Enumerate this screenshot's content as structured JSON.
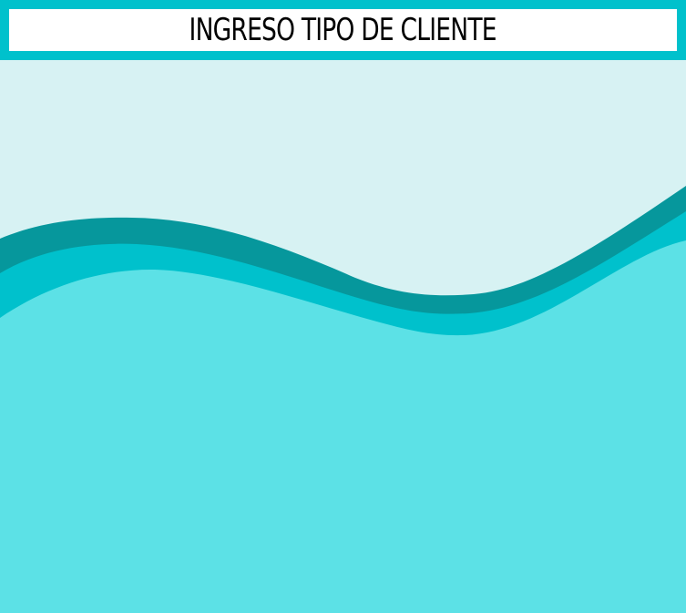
{
  "header": {
    "title": "INGRESO TIPO DE CLIENTE"
  },
  "colors": {
    "header_border": "#00c1cc",
    "header_background": "#ffffff",
    "sky": "#d7f2f3",
    "wave_dark": "#06979c",
    "wave_mid": "#00c1cc",
    "wave_light": "#5ce1e6"
  }
}
